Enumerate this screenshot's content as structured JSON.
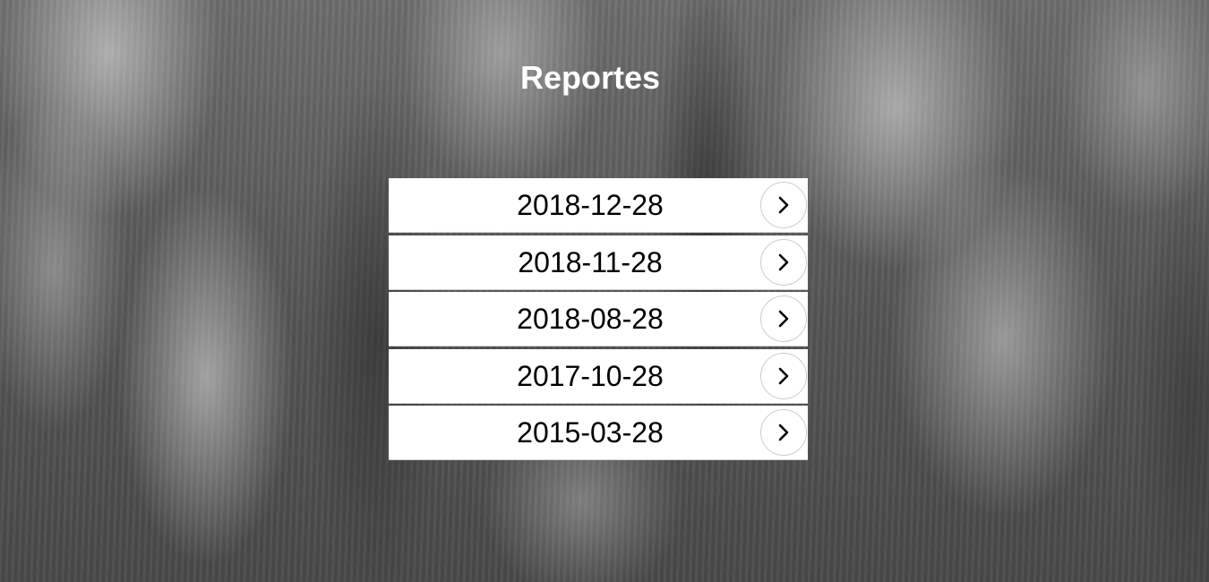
{
  "page": {
    "title": "Reportes"
  },
  "reports": [
    {
      "date": "2018-12-28",
      "action_icon": "chevron-right-icon"
    },
    {
      "date": "2018-11-28",
      "action_icon": "chevron-right-icon"
    },
    {
      "date": "2018-08-28",
      "action_icon": "chevron-right-icon"
    },
    {
      "date": "2017-10-28",
      "action_icon": "chevron-right-icon"
    },
    {
      "date": "2015-03-28",
      "action_icon": "chevron-right-icon"
    }
  ],
  "colors": {
    "title_text": "#ffffff",
    "item_background": "#ffffff",
    "item_text": "#000000",
    "arrow_circle_border": "#cccccc",
    "arrow_stroke": "#000000"
  }
}
